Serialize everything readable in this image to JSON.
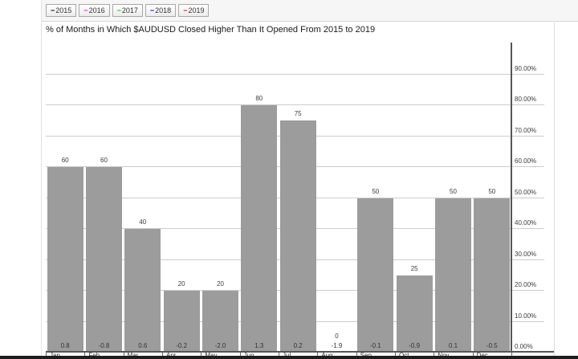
{
  "legend": {
    "items": [
      {
        "label": "2015",
        "color": "#000000"
      },
      {
        "label": "2016",
        "color": "#ff00ff"
      },
      {
        "label": "2017",
        "color": "#00cc00"
      },
      {
        "label": "2018",
        "color": "#0000ff"
      },
      {
        "label": "2019",
        "color": "#ff0000"
      }
    ],
    "dash_glyph": "−"
  },
  "chart_data": {
    "type": "bar",
    "title": "% of Months in Which $AUDUSD Closed Higher Than It Opened From 2015 to 2019",
    "categories": [
      "Jan",
      "Feb",
      "Mar",
      "Apr",
      "May",
      "Jun",
      "Jul",
      "Aug",
      "Sep",
      "Oct",
      "Nov",
      "Dec"
    ],
    "values": [
      60,
      60,
      40,
      20,
      20,
      80,
      75,
      0,
      50,
      25,
      50,
      50
    ],
    "secondary_labels": [
      "0.8",
      "-0.8",
      "0.6",
      "-0.2",
      "-2.0",
      "1.3",
      "0.2",
      "-1.9",
      "-0.1",
      "-0.9",
      "0.1",
      "-0.5"
    ],
    "bar_color": "#9c9c9c",
    "grid": true,
    "legend_position": "top-left",
    "y_axis": {
      "side": "right",
      "min": 0,
      "max": 100,
      "tick_values": [
        90,
        80,
        70,
        60,
        50,
        40,
        30,
        20,
        10,
        0
      ],
      "tick_labels": [
        "90.00%",
        "80.00%",
        "70.00%",
        "60.00%",
        "50.00%",
        "40.00%",
        "30.00%",
        "20.00%",
        "10.00%",
        "0.00%"
      ]
    }
  }
}
